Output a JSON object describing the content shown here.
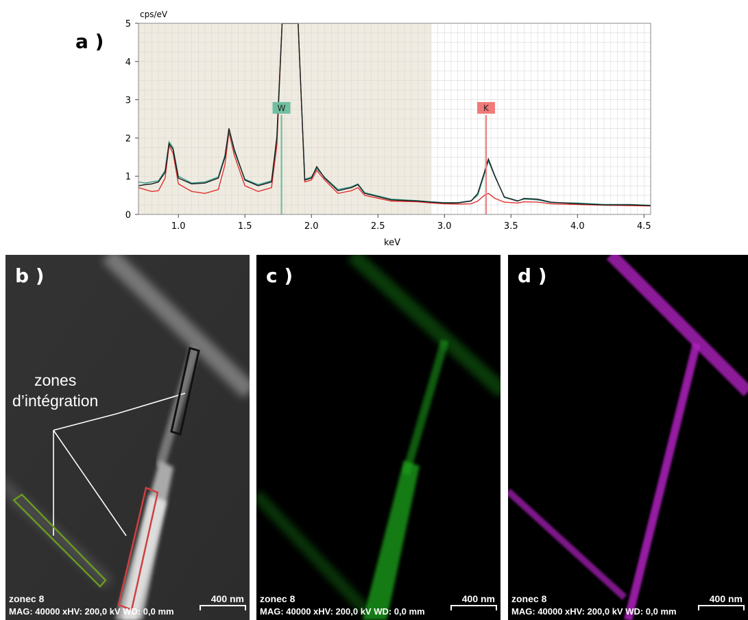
{
  "figure": {
    "panel_a_label": "a )",
    "panel_b_label": "b )",
    "panel_c_label": "c )",
    "panel_d_label": "d )"
  },
  "chart_data": {
    "type": "line",
    "ylabel": "cps/eV",
    "xlabel": "keV",
    "xlim": [
      0.7,
      4.55
    ],
    "ylim": [
      0,
      5
    ],
    "x_ticks": [
      "1.0",
      "1.5",
      "2.0",
      "2.5",
      "3.0",
      "3.5",
      "4.0",
      "4.5"
    ],
    "y_ticks": [
      "0",
      "1",
      "2",
      "3",
      "4",
      "5"
    ],
    "grid": true,
    "shaded_region": [
      0.7,
      2.9
    ],
    "colors": {
      "shade": "#f0ebe0",
      "black": "#1a1a1a",
      "teal": "#2e9c8a",
      "red": "#e03030",
      "w_marker": "#6fbfa0",
      "k_marker": "#f07a7a"
    },
    "series": [
      {
        "color": "black",
        "x": [
          0.7,
          0.75,
          0.8,
          0.85,
          0.9,
          0.93,
          0.96,
          1.0,
          1.1,
          1.2,
          1.3,
          1.35,
          1.38,
          1.42,
          1.5,
          1.6,
          1.7,
          1.74,
          1.78,
          1.85,
          1.9,
          1.95,
          2.0,
          2.04,
          2.1,
          2.2,
          2.3,
          2.35,
          2.4,
          2.6,
          2.8,
          2.9,
          3.0,
          3.1,
          3.2,
          3.25,
          3.3,
          3.33,
          3.38,
          3.45,
          3.55,
          3.6,
          3.7,
          3.8,
          4.0,
          4.2,
          4.4,
          4.55
        ],
        "y": [
          0.75,
          0.78,
          0.8,
          0.85,
          1.1,
          1.85,
          1.7,
          0.95,
          0.8,
          0.82,
          0.95,
          1.5,
          2.25,
          1.7,
          0.9,
          0.75,
          0.85,
          2.0,
          5.0,
          5.0,
          5.0,
          0.9,
          0.95,
          1.25,
          0.95,
          0.62,
          0.7,
          0.78,
          0.55,
          0.38,
          0.35,
          0.32,
          0.3,
          0.3,
          0.35,
          0.55,
          1.1,
          1.45,
          1.0,
          0.45,
          0.35,
          0.42,
          0.4,
          0.32,
          0.28,
          0.25,
          0.25,
          0.23
        ]
      },
      {
        "color": "teal",
        "x": [
          0.7,
          0.75,
          0.8,
          0.85,
          0.9,
          0.93,
          0.96,
          1.0,
          1.1,
          1.2,
          1.3,
          1.35,
          1.38,
          1.42,
          1.5,
          1.6,
          1.7,
          1.74,
          1.78,
          1.85,
          1.9,
          1.95,
          2.0,
          2.04,
          2.1,
          2.2,
          2.3,
          2.35,
          2.4,
          2.6,
          2.8,
          2.9,
          3.0,
          3.1,
          3.2,
          3.25,
          3.3,
          3.33,
          3.38,
          3.45,
          3.55,
          3.6,
          3.7,
          3.8,
          4.0,
          4.2,
          4.4,
          4.55
        ],
        "y": [
          0.85,
          0.82,
          0.85,
          0.88,
          1.15,
          1.9,
          1.75,
          1.0,
          0.82,
          0.85,
          0.98,
          1.55,
          2.2,
          1.65,
          0.92,
          0.78,
          0.88,
          2.05,
          5.0,
          5.0,
          5.0,
          0.92,
          0.98,
          1.2,
          0.97,
          0.65,
          0.72,
          0.8,
          0.57,
          0.4,
          0.36,
          0.33,
          0.31,
          0.31,
          0.36,
          0.5,
          1.05,
          1.4,
          0.98,
          0.46,
          0.36,
          0.4,
          0.38,
          0.31,
          0.3,
          0.26,
          0.26,
          0.24
        ]
      },
      {
        "color": "red",
        "x": [
          0.7,
          0.75,
          0.8,
          0.85,
          0.9,
          0.93,
          0.96,
          1.0,
          1.1,
          1.2,
          1.3,
          1.35,
          1.38,
          1.42,
          1.5,
          1.6,
          1.7,
          1.74,
          1.78,
          1.85,
          1.9,
          1.95,
          2.0,
          2.04,
          2.1,
          2.2,
          2.3,
          2.35,
          2.4,
          2.6,
          2.8,
          2.9,
          3.0,
          3.1,
          3.2,
          3.25,
          3.3,
          3.33,
          3.38,
          3.45,
          3.55,
          3.6,
          3.7,
          3.8,
          4.0,
          4.2,
          4.4,
          4.55
        ],
        "y": [
          0.7,
          0.65,
          0.6,
          0.62,
          0.95,
          1.8,
          1.6,
          0.8,
          0.6,
          0.55,
          0.65,
          1.3,
          2.15,
          1.55,
          0.75,
          0.6,
          0.7,
          1.8,
          5.0,
          5.0,
          5.0,
          0.85,
          0.9,
          1.15,
          0.9,
          0.55,
          0.62,
          0.7,
          0.5,
          0.35,
          0.33,
          0.3,
          0.28,
          0.27,
          0.28,
          0.35,
          0.5,
          0.55,
          0.42,
          0.32,
          0.3,
          0.33,
          0.32,
          0.28,
          0.26,
          0.24,
          0.23,
          0.22
        ]
      }
    ],
    "annotations": [
      {
        "label": "W",
        "x": 1.775,
        "color": "w_marker"
      },
      {
        "label": "K",
        "x": 3.313,
        "color": "k_marker"
      }
    ]
  },
  "image_b": {
    "annotation": "zones\nd’intégration",
    "sample": "zonec 8",
    "meta": "MAG: 40000 xHV: 200,0 kV  WD: 0,0 mm",
    "scale": "400 nm"
  },
  "image_c": {
    "sample": "zonec 8",
    "meta": "MAG: 40000 xHV: 200,0 kV  WD: 0,0 mm",
    "scale": "400 nm",
    "color": "#1fa51f"
  },
  "image_d": {
    "sample": "zonec 8",
    "meta": "MAG: 40000 xHV: 200,0 kV  WD: 0,0 mm",
    "scale": "400 nm",
    "color": "#b020c0"
  }
}
